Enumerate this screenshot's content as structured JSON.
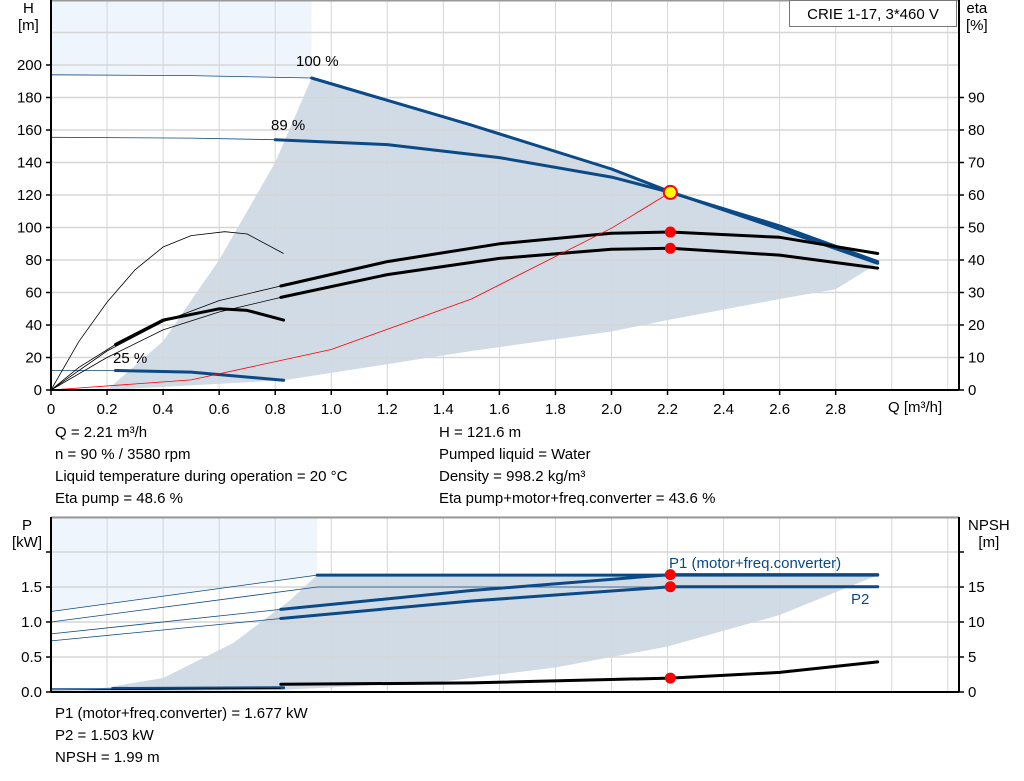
{
  "legend_box": "CRIE 1-17, 3*460 V",
  "chart_data": [
    {
      "type": "line",
      "xlabel": "Q [m³/h]",
      "ylabel": "H",
      "ylabel_unit": "[m]",
      "y2label": "eta",
      "y2label_unit": "[%]",
      "xlim": [
        0,
        3.24
      ],
      "ylim": [
        0,
        240
      ],
      "y2lim": [
        0,
        120
      ],
      "grid": true,
      "xticks": [
        "0",
        "0.2",
        "0.4",
        "0.6",
        "0.8",
        "1.0",
        "1.2",
        "1.4",
        "1.6",
        "1.8",
        "2.0",
        "2.2",
        "2.4",
        "2.6",
        "2.8"
      ],
      "xtick_values": [
        0,
        0.2,
        0.4,
        0.6,
        0.8,
        1.0,
        1.2,
        1.4,
        1.6,
        1.8,
        2.0,
        2.2,
        2.4,
        2.6,
        2.8
      ],
      "yticks": [
        0,
        20,
        40,
        60,
        80,
        100,
        120,
        140,
        160,
        180,
        200
      ],
      "y2ticks": [
        0,
        10,
        20,
        30,
        40,
        50,
        60,
        70,
        80,
        90
      ],
      "colors": {
        "head": "#0b4a86",
        "eta": "#000000",
        "system": "#ff0000",
        "area_light": "#eef5fd",
        "area_dark": "#d0dbe6",
        "operating_point": "#ffff00",
        "marker": "#ff0000"
      },
      "series": [
        {
          "name": "100 %",
          "kind": "head",
          "thin": [
            [
              0,
              194
            ],
            [
              0.5,
              193.5
            ],
            [
              0.93,
              192
            ]
          ],
          "thick": [
            [
              0.93,
              192
            ],
            [
              1.5,
              163
            ],
            [
              2.0,
              136
            ],
            [
              2.21,
              122
            ],
            [
              2.6,
              99
            ],
            [
              2.95,
              78
            ]
          ]
        },
        {
          "name": "89 %",
          "kind": "head",
          "thin": [
            [
              0,
              155.5
            ],
            [
              0.5,
              155
            ],
            [
              0.8,
              154
            ]
          ],
          "thick": [
            [
              0.8,
              154
            ],
            [
              1.2,
              151
            ],
            [
              1.6,
              143
            ],
            [
              2.0,
              131
            ],
            [
              2.21,
              121.6
            ],
            [
              2.6,
              101
            ],
            [
              2.95,
              79
            ]
          ]
        },
        {
          "name": "25 %",
          "kind": "head",
          "thin": [
            [
              0,
              12
            ],
            [
              0.23,
              12
            ]
          ],
          "thick": [
            [
              0.23,
              12
            ],
            [
              0.5,
              11
            ],
            [
              0.83,
              6
            ]
          ]
        },
        {
          "kind": "eta",
          "axis": "y2",
          "thin": [
            [
              0,
              0
            ],
            [
              0.2,
              12
            ],
            [
              0.4,
              21
            ],
            [
              0.6,
              27.5
            ],
            [
              0.82,
              32
            ]
          ],
          "thick": [
            [
              0.82,
              32
            ],
            [
              1.2,
              39.5
            ],
            [
              1.6,
              45
            ],
            [
              2.0,
              48.2
            ],
            [
              2.21,
              48.6
            ],
            [
              2.6,
              47
            ],
            [
              2.95,
              42
            ]
          ]
        },
        {
          "kind": "eta",
          "axis": "y2",
          "thin": [
            [
              0,
              0
            ],
            [
              0.2,
              10
            ],
            [
              0.4,
              18.5
            ],
            [
              0.6,
              24
            ],
            [
              0.82,
              28.5
            ]
          ],
          "thick": [
            [
              0.82,
              28.5
            ],
            [
              1.2,
              35.5
            ],
            [
              1.6,
              40.5
            ],
            [
              2.0,
              43.3
            ],
            [
              2.21,
              43.6
            ],
            [
              2.6,
              41.5
            ],
            [
              2.95,
              37.5
            ]
          ]
        },
        {
          "kind": "eta",
          "axis": "y2",
          "thin": [
            [
              0,
              0
            ],
            [
              0.1,
              15
            ],
            [
              0.2,
              27
            ],
            [
              0.3,
              37
            ],
            [
              0.4,
              44
            ],
            [
              0.5,
              47.5
            ],
            [
              0.62,
              48.7
            ],
            [
              0.7,
              48
            ],
            [
              0.83,
              42
            ]
          ],
          "thick": []
        },
        {
          "kind": "eta",
          "axis": "y2",
          "thin": [
            [
              0,
              0
            ],
            [
              0.1,
              7
            ],
            [
              0.23,
              14
            ]
          ],
          "thick": [
            [
              0.23,
              14
            ],
            [
              0.4,
              21.5
            ],
            [
              0.6,
              25
            ],
            [
              0.7,
              24.5
            ],
            [
              0.83,
              21.5
            ]
          ]
        },
        {
          "kind": "system",
          "thin": [
            [
              0,
              0
            ],
            [
              0.5,
              6.2
            ],
            [
              1.0,
              24.9
            ],
            [
              1.5,
              56
            ],
            [
              2.0,
              99.6
            ],
            [
              2.21,
              121.6
            ]
          ],
          "thick": []
        }
      ],
      "area_light": [
        [
          0,
          240
        ],
        [
          0.93,
          240
        ],
        [
          0.93,
          192
        ],
        [
          0.5,
          193.5
        ],
        [
          0,
          194
        ],
        [
          0,
          0
        ]
      ],
      "area_dark": [
        [
          0.2,
          0
        ],
        [
          0.4,
          30
        ],
        [
          0.6,
          80
        ],
        [
          0.8,
          140
        ],
        [
          0.93,
          192
        ],
        [
          1.5,
          163
        ],
        [
          2.0,
          136
        ],
        [
          2.21,
          122
        ],
        [
          2.6,
          99
        ],
        [
          2.95,
          78
        ],
        [
          2.8,
          62
        ],
        [
          2.6,
          56
        ],
        [
          2.2,
          43
        ],
        [
          2.0,
          36
        ],
        [
          1.5,
          24
        ],
        [
          0.83,
          6
        ]
      ],
      "markers": [
        {
          "x": 2.21,
          "y": 121.6,
          "kind": "operating_point"
        },
        {
          "x": 2.21,
          "y": 48.6,
          "axis": "y2",
          "kind": "marker"
        },
        {
          "x": 2.21,
          "y": 43.6,
          "axis": "y2",
          "kind": "marker"
        }
      ]
    },
    {
      "type": "line",
      "ylabel": "P",
      "ylabel_unit": "[kW]",
      "y2label": "NPSH",
      "y2label_unit": "[m]",
      "xlim": [
        0,
        3.24
      ],
      "ylim": [
        0,
        2.5
      ],
      "y2lim": [
        0,
        25
      ],
      "grid": true,
      "yticks": [
        "0.0",
        "0.5",
        "1.0",
        "1.5"
      ],
      "ytick_values": [
        0,
        0.5,
        1.0,
        1.5
      ],
      "y2ticks": [
        0,
        5,
        10,
        15
      ],
      "series": [
        {
          "name": "P1 (motor+freq.converter)",
          "kind": "power",
          "thin": [
            [
              0,
              1.15
            ],
            [
              0.95,
              1.67
            ]
          ],
          "thick": [
            [
              0.95,
              1.67
            ],
            [
              2.95,
              1.67
            ]
          ]
        },
        {
          "kind": "power",
          "thin": [
            [
              0,
              1.0
            ],
            [
              0.95,
              1.5
            ],
            [
              2.21,
              1.5
            ]
          ],
          "thick": []
        },
        {
          "kind": "power",
          "thin": [
            [
              0,
              0.83
            ],
            [
              0.82,
              1.18
            ]
          ],
          "thick": [
            [
              0.82,
              1.18
            ],
            [
              1.5,
              1.45
            ],
            [
              2.21,
              1.677
            ],
            [
              2.95,
              1.677
            ]
          ]
        },
        {
          "name": "P2",
          "kind": "power",
          "thin": [
            [
              0,
              0.73
            ],
            [
              0.82,
              1.05
            ]
          ],
          "thick": [
            [
              0.82,
              1.05
            ],
            [
              1.5,
              1.3
            ],
            [
              2.21,
              1.503
            ],
            [
              2.95,
              1.503
            ]
          ]
        },
        {
          "kind": "power",
          "thin": [
            [
              0,
              0.05
            ],
            [
              0.22,
              0.05
            ]
          ],
          "thick": [
            [
              0.22,
              0.05
            ],
            [
              0.83,
              0.06
            ]
          ]
        },
        {
          "kind": "npsh",
          "axis": "y2",
          "thin": [
            [
              0,
              0.3
            ],
            [
              0.82,
              0.5
            ]
          ],
          "thick": [
            [
              0.82,
              1.1
            ],
            [
              1.5,
              1.3
            ],
            [
              2.21,
              1.99
            ],
            [
              2.6,
              2.8
            ],
            [
              2.95,
              4.3
            ]
          ]
        }
      ],
      "area_light": [
        [
          0,
          2.5
        ],
        [
          0.95,
          2.5
        ],
        [
          0.95,
          1.67
        ],
        [
          0,
          1.15
        ],
        [
          0,
          0
        ]
      ],
      "area_dark": [
        [
          0.1,
          0
        ],
        [
          0.4,
          0.2
        ],
        [
          0.65,
          0.7
        ],
        [
          0.85,
          1.3
        ],
        [
          0.95,
          1.67
        ],
        [
          2.95,
          1.67
        ],
        [
          2.6,
          1.1
        ],
        [
          2.2,
          0.65
        ],
        [
          1.8,
          0.35
        ],
        [
          1.4,
          0.15
        ],
        [
          0.83,
          0.03
        ]
      ],
      "markers": [
        {
          "x": 2.21,
          "y": 1.677,
          "kind": "marker"
        },
        {
          "x": 2.21,
          "y": 1.503,
          "kind": "marker"
        },
        {
          "x": 2.21,
          "y": 1.99,
          "axis": "y2",
          "kind": "marker"
        }
      ]
    }
  ],
  "top_info": {
    "left": [
      "Q = 2.21 m³/h",
      "n = 90 % / 3580 rpm",
      "Liquid temperature during operation = 20 °C",
      "Eta pump = 48.6 %"
    ],
    "right": [
      "H = 121.6 m",
      "Pumped liquid = Water",
      "Density = 998.2 kg/m³",
      "Eta pump+motor+freq.converter = 43.6 %"
    ]
  },
  "bottom_info": [
    "P1 (motor+freq.converter) = 1.677 kW",
    "P2 = 1.503 kW",
    "NPSH = 1.99 m"
  ]
}
